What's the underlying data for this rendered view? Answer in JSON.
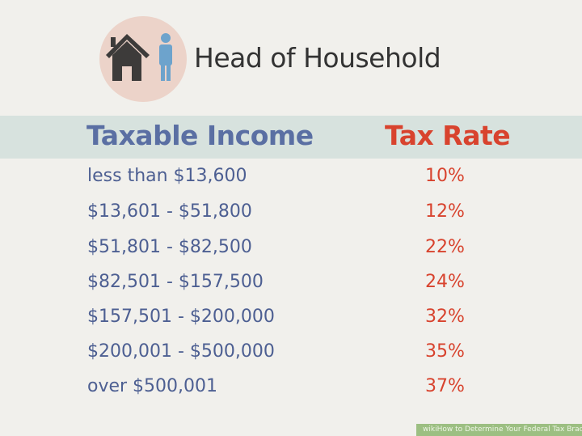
{
  "header": {
    "title": "Head of Household",
    "icon": "house-and-person-icon",
    "icon_bg": "#ecd3c9"
  },
  "table": {
    "columns": [
      "Taxable Income",
      "Tax Rate"
    ],
    "rows": [
      {
        "income": "less than $13,600",
        "rate": "10%"
      },
      {
        "income": "$13,601 - $51,800",
        "rate": "12%"
      },
      {
        "income": "$51,801 - $82,500",
        "rate": "22%"
      },
      {
        "income": "$82,501 - $157,500",
        "rate": "24%"
      },
      {
        "income": "$157,501 - $200,000",
        "rate": "32%"
      },
      {
        "income": "$200,001 - $500,000",
        "rate": "35%"
      },
      {
        "income": "over $500,001",
        "rate": "37%"
      }
    ],
    "colors": {
      "income": "#5a6fa3",
      "rate": "#d8432e",
      "band": "#d7e2de"
    }
  },
  "watermark": "wikiHow to Determine Your Federal Tax Bracket"
}
